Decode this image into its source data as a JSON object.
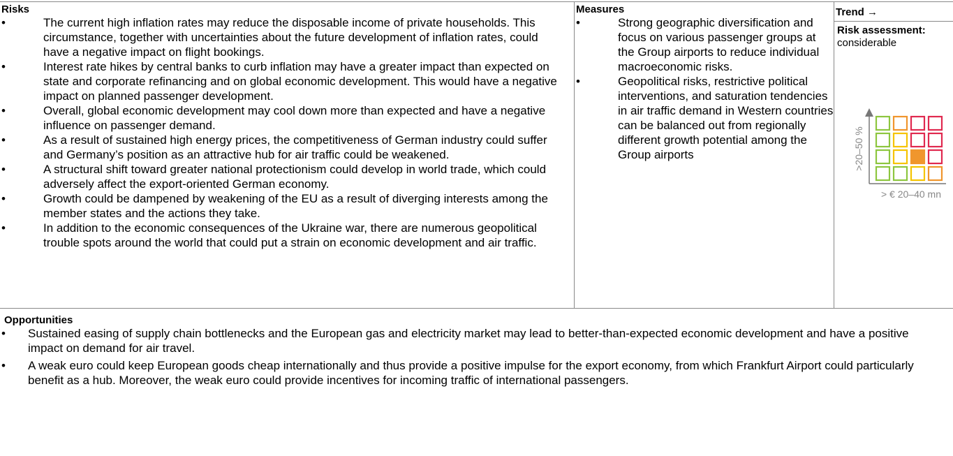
{
  "table": {
    "headers": {
      "risks": "Risks",
      "measures": "Measures",
      "trend": "Trend →"
    },
    "risks": [
      "The current high inflation rates may reduce the disposable income of private households. This circumstance, together with uncertainties about the future development of inflation rates, could have a negative impact on flight bookings.",
      "Interest rate hikes by central banks to curb inflation may have a greater impact than expected on state and corporate refinancing and on global economic development. This would have a negative impact on planned passenger development.",
      "Overall, global economic development may cool down more than expected and have a negative influence on passenger demand.",
      "As a result of sustained high energy prices, the competitiveness of German industry could suffer and Germany’s position as an attractive hub for air traffic could be weakened.",
      "A structural shift toward greater national protectionism could develop in world trade, which could adversely affect the export-oriented German economy.",
      "Growth could be dampened by weakening of the EU as a result of diverging interests among the member states and the actions they take.",
      "In addition to the economic consequences of the Ukraine war, there are numerous geopolitical trouble spots around the world that could put a strain on economic development and air traffic."
    ],
    "measures": [
      "Strong geographic diversification and focus on various passenger groups at the Group airports to reduce individual macroeconomic risks.",
      "Geopolitical risks, restrictive political interventions, and saturation tendencies in air traffic demand in Western countries can be balanced out from regionally different growth potential among the Group airports"
    ],
    "risk_assessment": {
      "label": "Risk assessment:",
      "value": "considerable"
    },
    "matrix": {
      "y_label": ">20–50 %",
      "x_label": "> € 20–40 mn"
    }
  },
  "opportunities": {
    "title": "Opportunities",
    "items": [
      "Sustained easing of supply chain bottlenecks and the European gas and electricity market may lead to better-than-expected economic development and have a positive impact on demand for air travel.",
      "A weak euro could keep European goods cheap internationally and thus provide a positive impulse for the export economy, from which Frankfurt Airport could particularly benefit as a hub. Moreover, the weak euro could provide incentives for incoming traffic of international passengers."
    ]
  }
}
